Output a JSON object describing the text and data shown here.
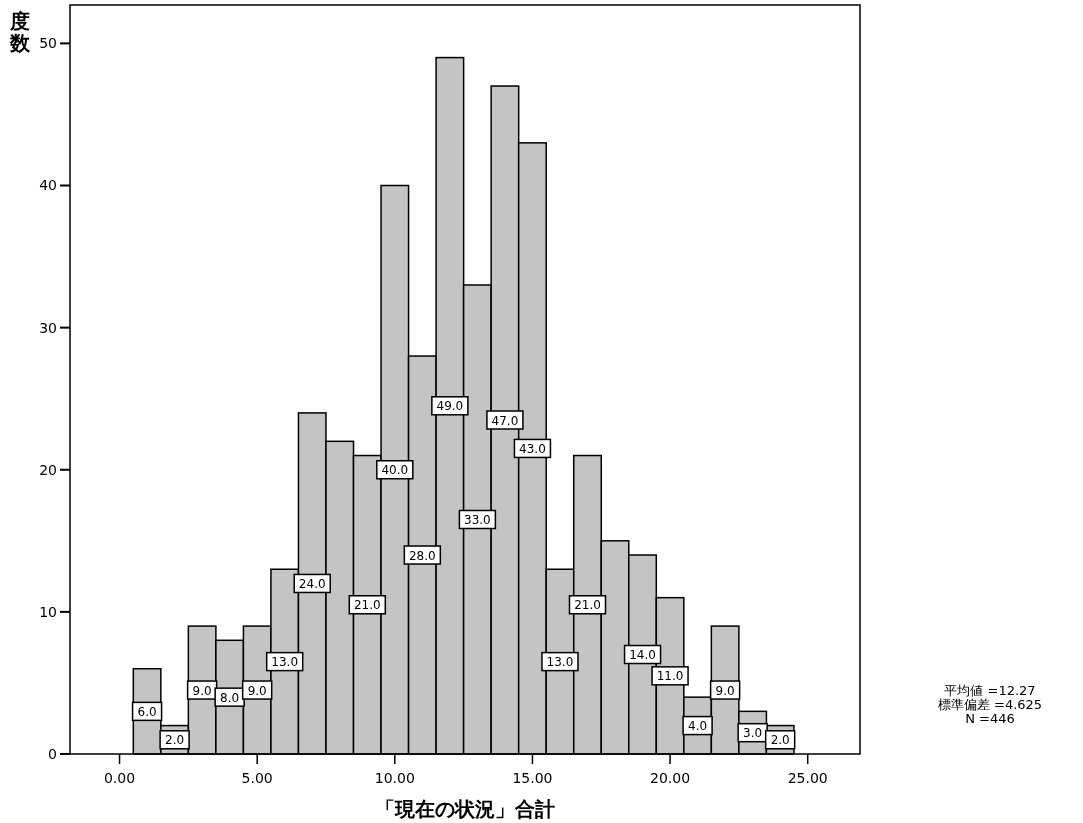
{
  "chart_data": {
    "type": "histogram",
    "xlabel": "「現在の状況」合計",
    "ylabel": "度数",
    "bins": [
      0.5,
      1.5,
      2.5,
      3.5,
      4.5,
      5.5,
      6.5,
      7.5,
      8.5,
      9.5,
      10.5,
      11.5,
      12.5,
      13.5,
      14.5,
      15.5,
      16.5,
      17.5,
      18.5,
      19.5,
      20.5,
      21.5,
      22.5,
      23.5,
      24.5
    ],
    "values": [
      6,
      2,
      9,
      8,
      9,
      13,
      24,
      22,
      21,
      40,
      28,
      49,
      33,
      47,
      43,
      13,
      21,
      15,
      14,
      11,
      4,
      9,
      3,
      2
    ],
    "value_labels": [
      "6.0",
      "2.0",
      "9.0",
      "8.0",
      "9.0",
      "13.0",
      "24.0",
      null,
      "21.0",
      "40.0",
      "28.0",
      "49.0",
      "33.0",
      "47.0",
      "43.0",
      "13.0",
      "21.0",
      null,
      "14.0",
      "11.0",
      "4.0",
      "9.0",
      "3.0",
      "2.0"
    ],
    "color": "#c4c4c4",
    "xlim": [
      -1.8,
      26.9
    ],
    "xticks": [
      {
        "value": 0,
        "label": "0.00"
      },
      {
        "value": 5,
        "label": "5.00"
      },
      {
        "value": 10,
        "label": "10.00"
      },
      {
        "value": 15,
        "label": "15.00"
      },
      {
        "value": 20,
        "label": "20.00"
      },
      {
        "value": 25,
        "label": "25.00"
      }
    ],
    "ylim": [
      0,
      52.7
    ],
    "yticks": [
      0,
      10,
      20,
      30,
      40,
      50
    ],
    "annotations": [
      "平均値 =12.27",
      "標準偏差 =4.625",
      "N =446"
    ]
  }
}
